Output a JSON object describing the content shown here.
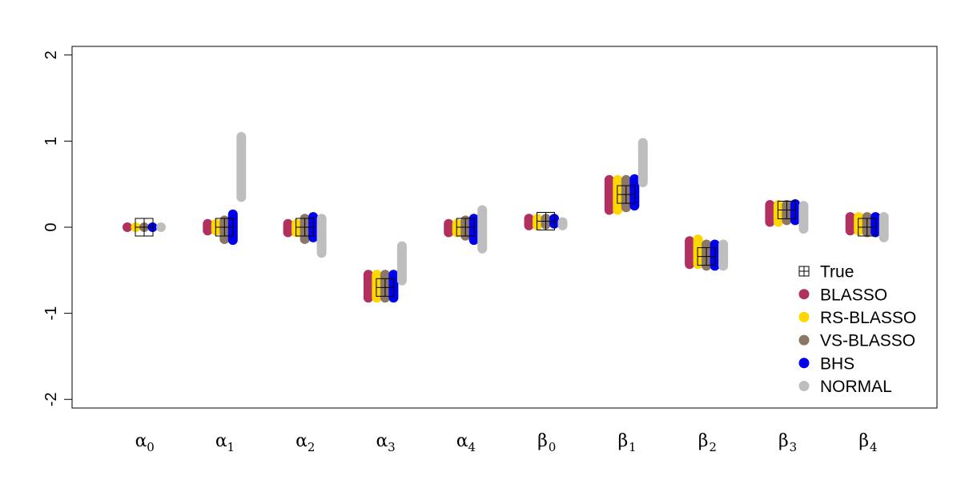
{
  "chart_data": {
    "type": "interval",
    "title": "",
    "xlabel": "",
    "ylabel": "",
    "ylim": [
      -2.1,
      2.1
    ],
    "yticks": [
      -2,
      -1,
      0,
      1,
      2
    ],
    "ytick_labels": [
      "-2",
      "-1",
      "0",
      "1",
      "2"
    ],
    "grid": false,
    "legend_position": "bottom-right",
    "categories": [
      {
        "sym": "α",
        "sub": "0"
      },
      {
        "sym": "α",
        "sub": "1"
      },
      {
        "sym": "α",
        "sub": "2"
      },
      {
        "sym": "α",
        "sub": "3"
      },
      {
        "sym": "α",
        "sub": "4"
      },
      {
        "sym": "β",
        "sub": "0"
      },
      {
        "sym": "β",
        "sub": "1"
      },
      {
        "sym": "β",
        "sub": "2"
      },
      {
        "sym": "β",
        "sub": "3"
      },
      {
        "sym": "β",
        "sub": "4"
      }
    ],
    "true_values": [
      0.0,
      0.0,
      0.0,
      -0.7,
      0.0,
      0.07,
      0.38,
      -0.34,
      0.2,
      0.0
    ],
    "series": [
      {
        "name": "BLASSO",
        "color": "#B03060",
        "intervals": [
          [
            0.0,
            0.0
          ],
          [
            -0.04,
            0.04
          ],
          [
            -0.06,
            0.04
          ],
          [
            -0.82,
            -0.55
          ],
          [
            -0.06,
            0.04
          ],
          [
            0.02,
            0.1
          ],
          [
            0.2,
            0.55
          ],
          [
            -0.43,
            -0.16
          ],
          [
            0.06,
            0.26
          ],
          [
            -0.04,
            0.12
          ]
        ]
      },
      {
        "name": "RS-BLASSO",
        "color": "#FFD700",
        "intervals": [
          [
            0.0,
            0.0
          ],
          [
            -0.04,
            0.04
          ],
          [
            -0.06,
            0.04
          ],
          [
            -0.82,
            -0.55
          ],
          [
            -0.06,
            0.04
          ],
          [
            0.02,
            0.1
          ],
          [
            0.2,
            0.55
          ],
          [
            -0.43,
            -0.14
          ],
          [
            0.06,
            0.26
          ],
          [
            -0.04,
            0.12
          ]
        ]
      },
      {
        "name": "VS-BLASSO",
        "color": "#8B7765",
        "intervals": [
          [
            0.0,
            0.0
          ],
          [
            -0.14,
            0.08
          ],
          [
            -0.14,
            0.1
          ],
          [
            -0.82,
            -0.55
          ],
          [
            -0.1,
            0.08
          ],
          [
            0.03,
            0.1
          ],
          [
            0.23,
            0.55
          ],
          [
            -0.45,
            -0.2
          ],
          [
            0.08,
            0.26
          ],
          [
            -0.06,
            0.12
          ]
        ]
      },
      {
        "name": "BHS",
        "color": "#0000EE",
        "intervals": [
          [
            0.0,
            0.0
          ],
          [
            -0.15,
            0.15
          ],
          [
            -0.12,
            0.12
          ],
          [
            -0.82,
            -0.55
          ],
          [
            -0.15,
            0.1
          ],
          [
            0.04,
            0.1
          ],
          [
            0.25,
            0.56
          ],
          [
            -0.45,
            -0.2
          ],
          [
            0.08,
            0.27
          ],
          [
            -0.06,
            0.12
          ]
        ]
      },
      {
        "name": "NORMAL",
        "color": "#BEBEBE",
        "intervals": [
          [
            0.0,
            0.0
          ],
          [
            0.35,
            1.05
          ],
          [
            -0.3,
            0.1
          ],
          [
            -0.62,
            -0.22
          ],
          [
            -0.25,
            0.2
          ],
          [
            0.02,
            0.06
          ],
          [
            0.52,
            0.98
          ],
          [
            -0.45,
            -0.2
          ],
          [
            -0.02,
            0.25
          ],
          [
            -0.12,
            0.12
          ]
        ]
      }
    ],
    "legend": [
      {
        "label": "True",
        "marker": "boxplus",
        "color": "#000000"
      },
      {
        "label": "BLASSO",
        "marker": "dot",
        "color": "#B03060"
      },
      {
        "label": "RS-BLASSO",
        "marker": "dot",
        "color": "#FFD700"
      },
      {
        "label": "VS-BLASSO",
        "marker": "dot",
        "color": "#8B7765"
      },
      {
        "label": "BHS",
        "marker": "dot",
        "color": "#0000EE"
      },
      {
        "label": "NORMAL",
        "marker": "dot",
        "color": "#BEBEBE"
      }
    ]
  }
}
